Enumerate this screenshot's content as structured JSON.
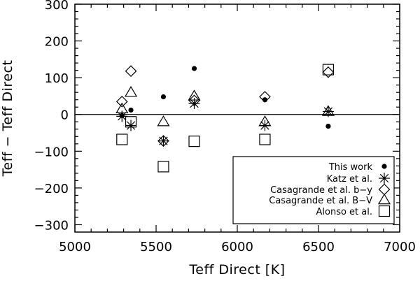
{
  "chart_data": {
    "type": "scatter",
    "title": "",
    "xlabel": "Teff Direct [K]",
    "ylabel": "Teff − Teff Direct",
    "xlim": [
      5000,
      7000
    ],
    "ylim": [
      -320,
      300
    ],
    "x_ticks": [
      5000,
      5500,
      6000,
      6500,
      7000
    ],
    "y_ticks": [
      -300,
      -200,
      -100,
      0,
      100,
      200,
      300
    ],
    "x_tick_labels": [
      "5000",
      "5500",
      "6000",
      "6500",
      "7000"
    ],
    "y_tick_labels": [
      "−300",
      "−200",
      "−100",
      "0",
      "100",
      "200",
      "300"
    ],
    "reference_line": 0,
    "grid": false,
    "legend_position": "bottom-right",
    "series": [
      {
        "name": "This work",
        "marker": "filled-circle",
        "points": [
          {
            "x": 5290,
            "y": -3
          },
          {
            "x": 5345,
            "y": 12
          },
          {
            "x": 5545,
            "y": 48
          },
          {
            "x": 5735,
            "y": 125
          },
          {
            "x": 6170,
            "y": 40
          },
          {
            "x": 6560,
            "y": -32
          }
        ]
      },
      {
        "name": "Katz et al.",
        "marker": "asterisk",
        "points": [
          {
            "x": 5290,
            "y": -5
          },
          {
            "x": 5345,
            "y": -30
          },
          {
            "x": 5545,
            "y": -72
          },
          {
            "x": 5735,
            "y": 30
          },
          {
            "x": 6170,
            "y": -30
          },
          {
            "x": 6560,
            "y": 8
          }
        ]
      },
      {
        "name": "Casagrande et al. b−y",
        "marker": "diamond",
        "points": [
          {
            "x": 5290,
            "y": 35
          },
          {
            "x": 5345,
            "y": 118
          },
          {
            "x": 5545,
            "y": -72
          },
          {
            "x": 5735,
            "y": 38
          },
          {
            "x": 6170,
            "y": 48
          },
          {
            "x": 6560,
            "y": 115
          }
        ]
      },
      {
        "name": "Casagrande et al. B−V",
        "marker": "triangle",
        "points": [
          {
            "x": 5290,
            "y": 15
          },
          {
            "x": 5345,
            "y": 60
          },
          {
            "x": 5545,
            "y": -20
          },
          {
            "x": 5735,
            "y": 50
          },
          {
            "x": 6170,
            "y": -20
          },
          {
            "x": 6560,
            "y": 8
          }
        ]
      },
      {
        "name": "Alonso et al.",
        "marker": "square",
        "points": [
          {
            "x": 5290,
            "y": -68
          },
          {
            "x": 5345,
            "y": -20
          },
          {
            "x": 5545,
            "y": -142
          },
          {
            "x": 5735,
            "y": -73
          },
          {
            "x": 6170,
            "y": -68
          },
          {
            "x": 6560,
            "y": 122
          }
        ]
      }
    ]
  }
}
